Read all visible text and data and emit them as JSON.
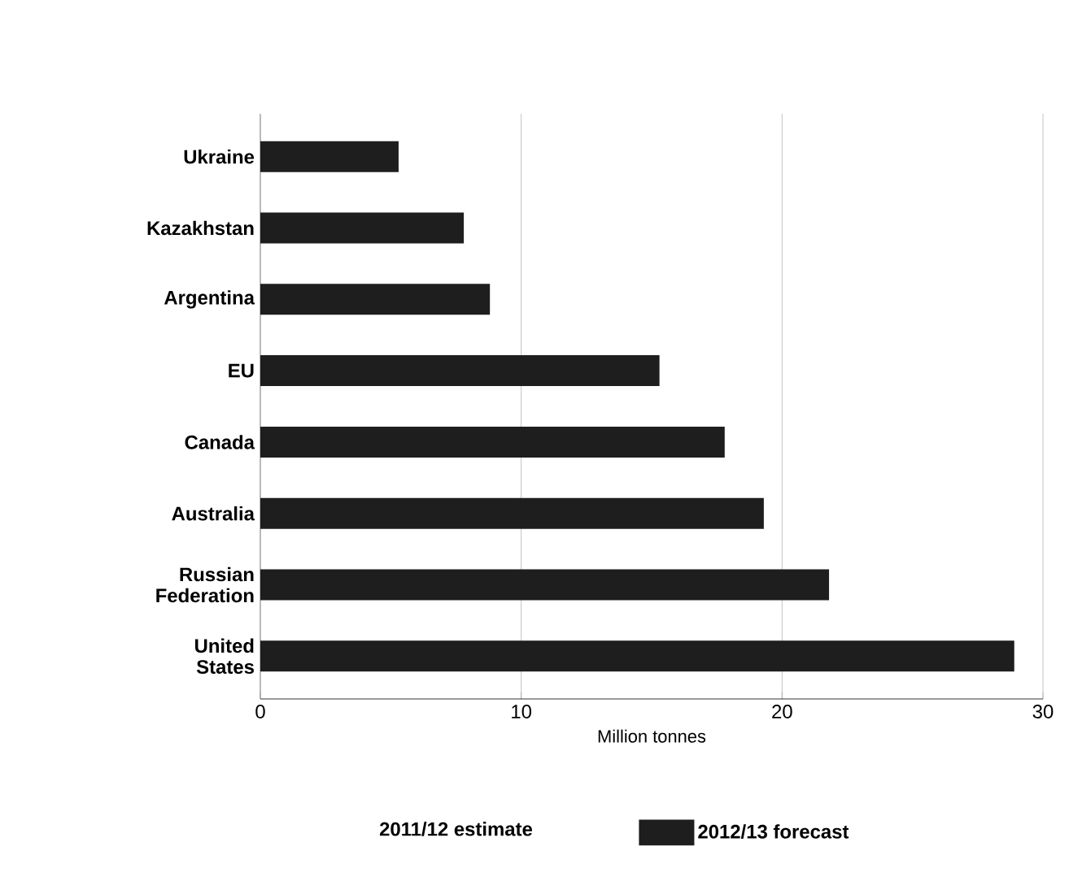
{
  "chart_data": {
    "type": "bar",
    "orientation": "horizontal",
    "categories": [
      "Ukraine",
      "Kazakhstan",
      "Argentina",
      "EU",
      "Canada",
      "Australia",
      "Russian Federation",
      "United States"
    ],
    "series": [
      {
        "name": "2012/13 forecast",
        "color": "#1e1e1e",
        "values": [
          5.3,
          7.8,
          8.8,
          15.3,
          17.8,
          19.3,
          21.8,
          28.9
        ]
      }
    ],
    "xlabel": "Million tonnes",
    "xlim": [
      0,
      30
    ],
    "xticks": [
      0,
      10,
      20,
      30
    ],
    "grid": "x",
    "legend": "bottom",
    "annotations": [
      "2011/12 estimate"
    ]
  }
}
